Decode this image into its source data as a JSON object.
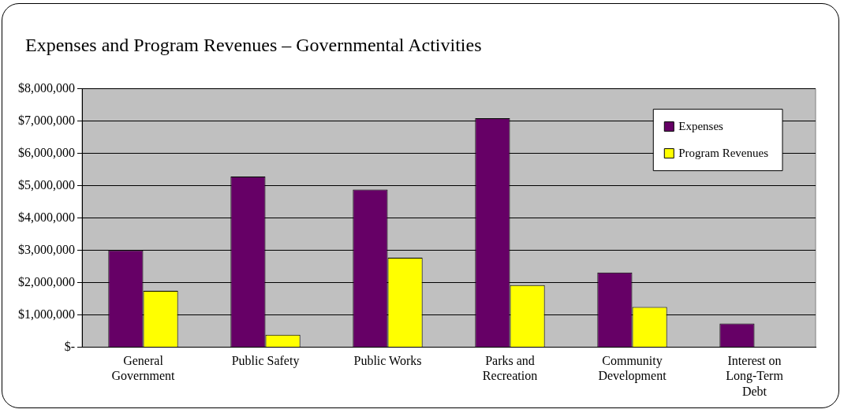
{
  "chart_data": {
    "type": "bar",
    "title": "Expenses and Program Revenues – Governmental Activities",
    "categories": [
      "General Government",
      "Public Safety",
      "Public Works",
      "Parks and Recreation",
      "Community Development",
      "Interest on Long-Term Debt"
    ],
    "series": [
      {
        "name": "Expenses",
        "color": "#660066",
        "values": [
          3000000,
          5280000,
          4880000,
          7090000,
          2310000,
          730000
        ]
      },
      {
        "name": "Program Revenues",
        "color": "#ffff00",
        "values": [
          1740000,
          380000,
          2770000,
          1920000,
          1240000,
          null
        ]
      }
    ],
    "ylim": [
      0,
      8000000
    ],
    "yticks": [
      {
        "value": 0,
        "label": "$-"
      },
      {
        "value": 1000000,
        "label": "$1,000,000"
      },
      {
        "value": 2000000,
        "label": "$2,000,000"
      },
      {
        "value": 3000000,
        "label": "$3,000,000"
      },
      {
        "value": 4000000,
        "label": "$4,000,000"
      },
      {
        "value": 5000000,
        "label": "$5,000,000"
      },
      {
        "value": 6000000,
        "label": "$6,000,000"
      },
      {
        "value": 7000000,
        "label": "$7,000,000"
      },
      {
        "value": 8000000,
        "label": "$8,000,000"
      }
    ],
    "grid": "y",
    "legend": "top right"
  }
}
